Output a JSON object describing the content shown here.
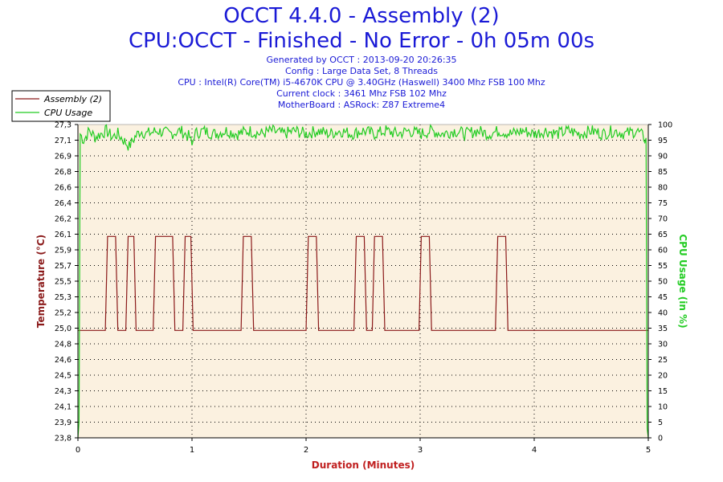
{
  "header": {
    "title_line1": "OCCT 4.4.0 - Assembly (2)",
    "title_line2": "CPU:OCCT - Finished - No Error - 0h 05m 00s",
    "info_lines": [
      "Generated by OCCT : 2013-09-20 20:26:35",
      "Config : Large Data Set, 8 Threads",
      "CPU : Intel(R) Core(TM) i5-4670K CPU @ 3.40GHz (Haswell) 3400 Mhz FSB 100 Mhz",
      "Current clock : 3461 Mhz FSB 102 Mhz",
      "MotherBoard : ASRock: Z87 Extreme4"
    ]
  },
  "colors": {
    "temperature": "#8b1a1a",
    "cpu_usage": "#22cc22",
    "plot_bg": "#fbf1e0",
    "title": "#1a1ad6",
    "axis_label_x": "#c02020"
  },
  "chart_data": {
    "type": "line",
    "xlabel": "Duration (Minutes)",
    "ylabel_left": "Temperature (°C)",
    "ylabel_right": "CPU Usage (in %)",
    "xlim": [
      0,
      5
    ],
    "ylim_left": [
      23.8,
      27.3
    ],
    "ylim_right": [
      0,
      100
    ],
    "x_ticks": [
      "0",
      "1",
      "2",
      "3",
      "4",
      "5"
    ],
    "y_ticks_left": [
      "27,3",
      "27,1",
      "26,9",
      "26,8",
      "26,6",
      "26,4",
      "26,2",
      "26,1",
      "25,9",
      "25,7",
      "25,5",
      "25,3",
      "25,2",
      "25,0",
      "24,8",
      "24,6",
      "24,5",
      "24,3",
      "24,1",
      "23,9",
      "23,8"
    ],
    "y_ticks_right": [
      "100",
      "95",
      "90",
      "85",
      "80",
      "75",
      "70",
      "65",
      "60",
      "55",
      "50",
      "45",
      "40",
      "35",
      "30",
      "25",
      "20",
      "15",
      "10",
      "5",
      "0"
    ],
    "grid": true,
    "legend_position": "top-left",
    "series": [
      {
        "name": "Assembly (2)",
        "axis": "left",
        "points": [
          [
            0,
            25.0
          ],
          [
            0.24,
            25.0
          ],
          [
            0.26,
            26.05
          ],
          [
            0.33,
            26.05
          ],
          [
            0.35,
            25.0
          ],
          [
            0.42,
            25.0
          ],
          [
            0.44,
            26.05
          ],
          [
            0.49,
            26.05
          ],
          [
            0.51,
            25.0
          ],
          [
            0.66,
            25.0
          ],
          [
            0.68,
            26.05
          ],
          [
            0.83,
            26.05
          ],
          [
            0.85,
            25.0
          ],
          [
            0.92,
            25.0
          ],
          [
            0.94,
            26.05
          ],
          [
            0.99,
            26.05
          ],
          [
            1.01,
            25.0
          ],
          [
            1.43,
            25.0
          ],
          [
            1.45,
            26.05
          ],
          [
            1.52,
            26.05
          ],
          [
            1.54,
            25.0
          ],
          [
            2.0,
            25.0
          ],
          [
            2.02,
            26.05
          ],
          [
            2.09,
            26.05
          ],
          [
            2.11,
            25.0
          ],
          [
            2.42,
            25.0
          ],
          [
            2.44,
            26.05
          ],
          [
            2.51,
            26.05
          ],
          [
            2.53,
            25.0
          ],
          [
            2.58,
            25.0
          ],
          [
            2.6,
            26.05
          ],
          [
            2.67,
            26.05
          ],
          [
            2.69,
            25.0
          ],
          [
            2.99,
            25.0
          ],
          [
            3.01,
            26.05
          ],
          [
            3.08,
            26.05
          ],
          [
            3.1,
            25.0
          ],
          [
            3.66,
            25.0
          ],
          [
            3.68,
            26.05
          ],
          [
            3.75,
            26.05
          ],
          [
            3.77,
            25.0
          ],
          [
            5.0,
            25.0
          ]
        ]
      },
      {
        "name": "CPU Usage",
        "axis": "right",
        "points": [
          [
            0,
            0
          ],
          [
            0.01,
            5
          ],
          [
            0.02,
            97
          ],
          [
            0.05,
            95
          ],
          [
            0.1,
            98
          ],
          [
            0.15,
            96
          ],
          [
            0.2,
            97
          ],
          [
            0.25,
            98
          ],
          [
            0.3,
            96
          ],
          [
            0.35,
            97
          ],
          [
            0.4,
            95
          ],
          [
            0.45,
            93
          ],
          [
            0.5,
            96
          ],
          [
            0.55,
            98
          ],
          [
            0.6,
            97
          ],
          [
            0.7,
            98
          ],
          [
            0.8,
            97
          ],
          [
            0.9,
            98
          ],
          [
            0.98,
            96
          ],
          [
            1.0,
            93
          ],
          [
            1.02,
            97
          ],
          [
            1.1,
            98
          ],
          [
            1.2,
            97
          ],
          [
            1.3,
            98
          ],
          [
            1.4,
            97
          ],
          [
            1.5,
            98
          ],
          [
            1.6,
            97
          ],
          [
            1.7,
            98
          ],
          [
            1.8,
            97
          ],
          [
            1.9,
            98
          ],
          [
            2.0,
            97
          ],
          [
            2.1,
            98
          ],
          [
            2.2,
            97
          ],
          [
            2.3,
            98
          ],
          [
            2.4,
            97
          ],
          [
            2.5,
            98
          ],
          [
            2.6,
            97
          ],
          [
            2.7,
            98
          ],
          [
            2.8,
            97
          ],
          [
            2.9,
            98
          ],
          [
            3.0,
            97
          ],
          [
            3.1,
            98
          ],
          [
            3.2,
            97
          ],
          [
            3.3,
            98
          ],
          [
            3.4,
            97
          ],
          [
            3.5,
            98
          ],
          [
            3.6,
            97
          ],
          [
            3.7,
            98
          ],
          [
            3.8,
            97
          ],
          [
            3.9,
            98
          ],
          [
            4.0,
            97
          ],
          [
            4.1,
            98
          ],
          [
            4.2,
            97
          ],
          [
            4.3,
            98
          ],
          [
            4.4,
            97
          ],
          [
            4.5,
            98
          ],
          [
            4.6,
            97
          ],
          [
            4.7,
            98
          ],
          [
            4.8,
            97
          ],
          [
            4.9,
            98
          ],
          [
            4.96,
            96
          ],
          [
            4.98,
            95
          ],
          [
            4.99,
            3
          ],
          [
            5.0,
            0
          ]
        ]
      }
    ]
  }
}
